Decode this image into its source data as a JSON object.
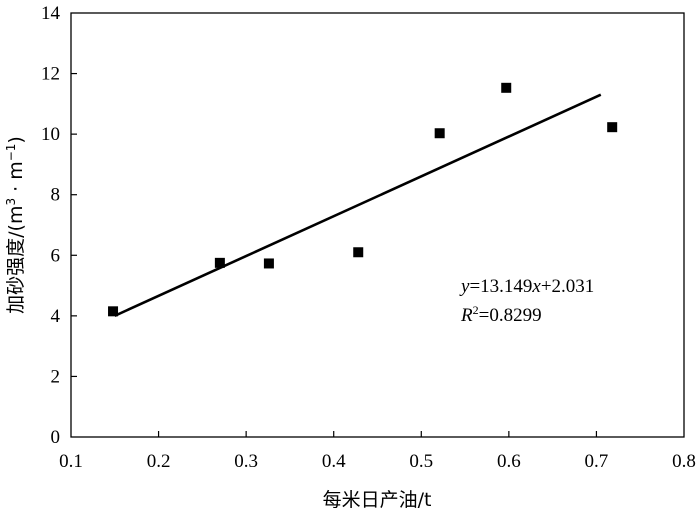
{
  "chart_data": {
    "type": "scatter",
    "xlabel": "每米日产油/t",
    "ylabel": {
      "main": "加砂强度/(m",
      "sup1": "3",
      "mid": " · m",
      "sup2": "−1",
      "end": ")"
    },
    "xlim": [
      0.1,
      0.8
    ],
    "ylim": [
      0,
      14
    ],
    "x_ticks": [
      "0.1",
      "0.2",
      "0.3",
      "0.4",
      "0.5",
      "0.6",
      "0.7",
      "0.8"
    ],
    "y_ticks": [
      "0",
      "2",
      "4",
      "6",
      "8",
      "10",
      "12",
      "14"
    ],
    "grid": false,
    "series": [
      {
        "marker": "square",
        "points": [
          {
            "x": 0.148,
            "y": 4.15
          },
          {
            "x": 0.27,
            "y": 5.75
          },
          {
            "x": 0.326,
            "y": 5.73
          },
          {
            "x": 0.428,
            "y": 6.1
          },
          {
            "x": 0.521,
            "y": 10.03
          },
          {
            "x": 0.597,
            "y": 11.53
          },
          {
            "x": 0.718,
            "y": 10.23
          }
        ]
      }
    ],
    "trendline": {
      "slope": 13.149,
      "intercept": 2.031,
      "x_range": [
        0.15,
        0.705
      ]
    },
    "annotation": {
      "eq_y": "y",
      "eq_rest": "=13.149",
      "eq_x": "x",
      "eq_tail": "+2.031",
      "r2_label": "R",
      "r2_sup": "2",
      "r2_value": "=0.8299"
    }
  }
}
